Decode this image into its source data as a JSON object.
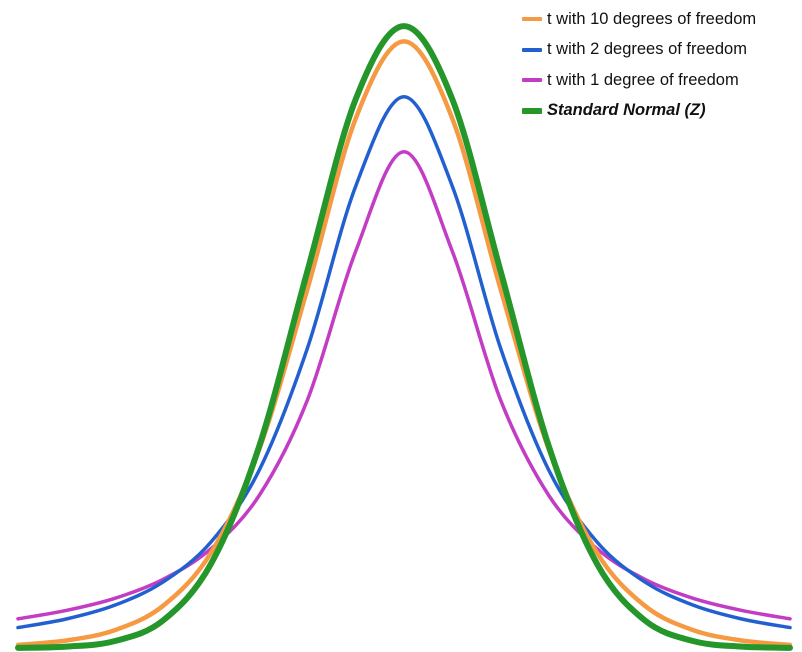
{
  "chart_data": {
    "type": "line",
    "title": "",
    "xlabel": "",
    "ylabel": "",
    "xlim": [
      -4,
      4
    ],
    "ylim": [
      0,
      0.4
    ],
    "grid": false,
    "axes_visible": false,
    "legend_position": "top-right",
    "x": [
      -4,
      -3.5,
      -3,
      -2.5,
      -2,
      -1.5,
      -1,
      -0.5,
      0,
      0.5,
      1,
      1.5,
      2,
      2.5,
      3,
      3.5,
      4
    ],
    "series": [
      {
        "name": "t with 1 degree of freedom",
        "color": "#c23cc4",
        "width": 3.5,
        "bold": false,
        "values": [
          0.0187,
          0.0241,
          0.0318,
          0.0439,
          0.0637,
          0.0979,
          0.1592,
          0.2546,
          0.3183,
          0.2546,
          0.1592,
          0.0979,
          0.0637,
          0.0439,
          0.0318,
          0.0241,
          0.0187
        ]
      },
      {
        "name": "t with 2 degrees of freedom",
        "color": "#2260d0",
        "width": 3.5,
        "bold": false,
        "values": [
          0.0131,
          0.0186,
          0.0274,
          0.0422,
          0.068,
          0.1141,
          0.1925,
          0.2963,
          0.3536,
          0.2963,
          0.1925,
          0.1141,
          0.068,
          0.0422,
          0.0274,
          0.0186,
          0.0131
        ]
      },
      {
        "name": "t with 10 degrees of freedom",
        "color": "#f59a42",
        "width": 4.5,
        "bold": false,
        "values": [
          0.002,
          0.0048,
          0.0114,
          0.0269,
          0.0611,
          0.1275,
          0.2304,
          0.3397,
          0.3891,
          0.3397,
          0.2304,
          0.1275,
          0.0611,
          0.0269,
          0.0114,
          0.0048,
          0.002
        ]
      },
      {
        "name": "Standard Normal (Z)",
        "color": "#24962a",
        "width": 6,
        "bold": true,
        "values": [
          0.0001,
          0.0009,
          0.0044,
          0.0175,
          0.054,
          0.1295,
          0.242,
          0.3521,
          0.3989,
          0.3521,
          0.242,
          0.1295,
          0.054,
          0.0175,
          0.0044,
          0.0009,
          0.0001
        ]
      }
    ],
    "legend_order": [
      2,
      1,
      0,
      3
    ]
  }
}
